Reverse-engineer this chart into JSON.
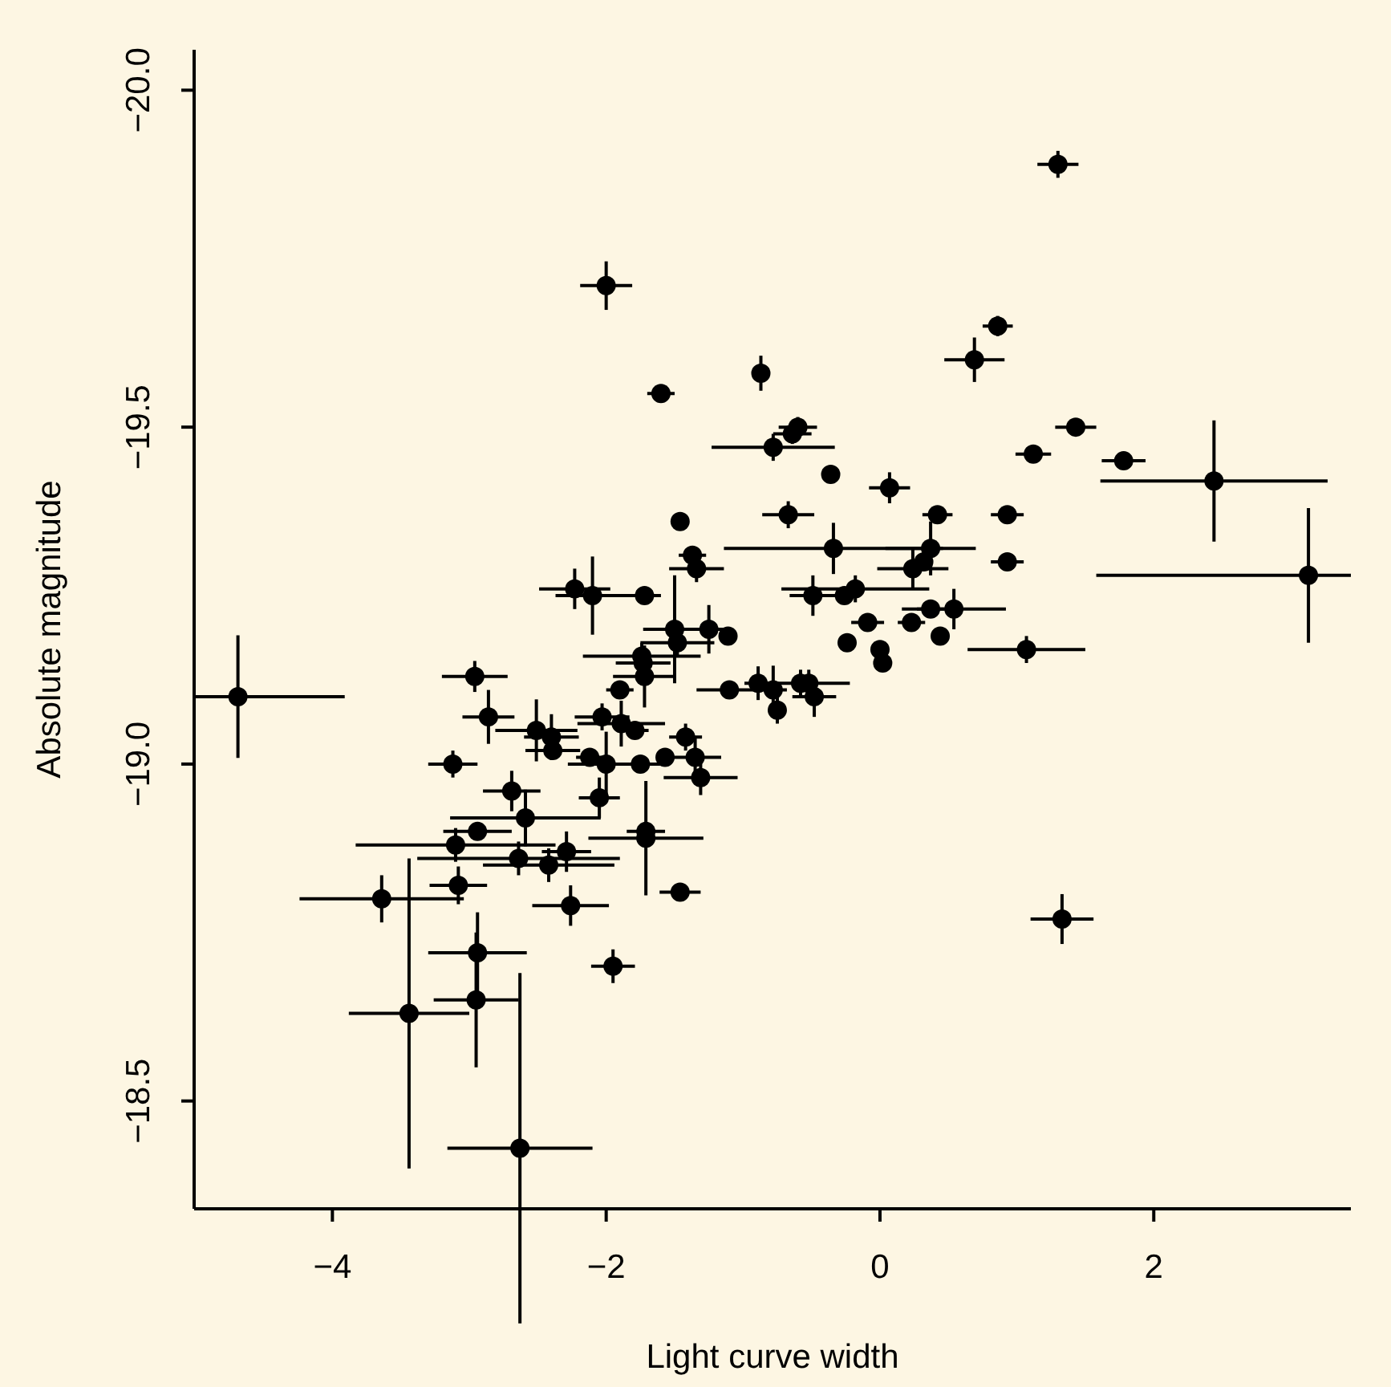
{
  "chart_data": {
    "type": "scatter",
    "xlabel": "Light curve width",
    "ylabel": "Absolute magnitude",
    "color": "#000000",
    "marker": "circle",
    "xlim": [
      -5.01,
      3.44
    ],
    "ylim": [
      -18.34,
      -20.06
    ],
    "xticks": [
      {
        "value": -4,
        "label": "−4"
      },
      {
        "value": -2,
        "label": "−2"
      },
      {
        "value": 0,
        "label": "0"
      },
      {
        "value": 2,
        "label": "2"
      }
    ],
    "yticks": [
      {
        "value": -20,
        "label": "−20.0"
      },
      {
        "value": -19.5,
        "label": "−19.5"
      },
      {
        "value": -19,
        "label": "−19.0"
      },
      {
        "value": -18.5,
        "label": "−18.5"
      }
    ],
    "x": [
      1.3,
      0.86,
      0.69,
      -0.87,
      -0.6,
      -0.64,
      -0.78,
      -0.36,
      0.07,
      1.12,
      1.43,
      1.78,
      2.44,
      -0.67,
      0.42,
      0.93,
      3.13,
      -1.46,
      -1.37,
      -1.34,
      -0.34,
      0.37,
      0.24,
      0.32,
      0.93,
      -2.23,
      -2.1,
      -1.72,
      -0.49,
      -0.18,
      -0.26,
      -0.09,
      0.23,
      0.37,
      0.54,
      0.44,
      -0.24,
      0.0,
      0.02,
      1.07,
      1.33,
      -1.5,
      -1.25,
      -1.11,
      -1.48,
      -1.74,
      -1.73,
      -1.72,
      -1.9,
      -1.1,
      -0.89,
      -0.78,
      -0.58,
      -0.52,
      -0.75,
      -0.48,
      -2.86,
      -2.03,
      -1.89,
      -1.79,
      -2.51,
      -2.4,
      -2.39,
      -1.42,
      -1.35,
      -1.31,
      -2.12,
      -2.0,
      -1.75,
      -1.57,
      -2.69,
      -2.59,
      -2.05,
      -1.71,
      -1.71,
      -2.29,
      -2.64,
      -2.42,
      -2.26,
      -1.46,
      -1.95,
      -4.69,
      -3.12,
      -2.94,
      -3.1,
      -3.08,
      -3.64,
      -2.94,
      -2.95,
      -3.44,
      -2.63,
      -2.96,
      -2.0,
      -1.6
    ],
    "values": [
      -19.89,
      -19.65,
      -19.6,
      -19.58,
      -19.5,
      -19.49,
      -19.47,
      -19.43,
      -19.41,
      -19.46,
      -19.5,
      -19.45,
      -19.42,
      -19.37,
      -19.37,
      -19.37,
      -19.28,
      -19.36,
      -19.31,
      -19.29,
      -19.32,
      -19.32,
      -19.29,
      -19.3,
      -19.3,
      -19.26,
      -19.25,
      -19.25,
      -19.25,
      -19.26,
      -19.25,
      -19.21,
      -19.21,
      -19.23,
      -19.23,
      -19.19,
      -19.18,
      -19.17,
      -19.15,
      -19.17,
      -18.77,
      -19.2,
      -19.2,
      -19.19,
      -19.18,
      -19.16,
      -19.15,
      -19.13,
      -19.11,
      -19.11,
      -19.12,
      -19.11,
      -19.12,
      -19.12,
      -19.08,
      -19.1,
      -19.07,
      -19.07,
      -19.06,
      -19.05,
      -19.05,
      -19.04,
      -19.02,
      -19.04,
      -19.01,
      -18.98,
      -19.01,
      -19.0,
      -19.0,
      -19.01,
      -18.96,
      -18.92,
      -18.95,
      -18.9,
      -18.89,
      -18.87,
      -18.86,
      -18.85,
      -18.79,
      -18.81,
      -18.7,
      -19.1,
      -19.0,
      -18.9,
      -18.88,
      -18.82,
      -18.8,
      -18.72,
      -18.65,
      -18.63,
      -18.43,
      -19.13,
      -19.71,
      -19.55
    ],
    "xerrors": [
      0.15,
      0.11,
      0.22,
      0.06,
      0.14,
      0.14,
      0.45,
      null,
      0.15,
      0.13,
      0.15,
      0.16,
      0.83,
      0.19,
      0.11,
      0.12,
      [
        1.58,
        3.44
      ],
      0.06,
      0.1,
      0.2,
      0.8,
      0.33,
      0.26,
      0.05,
      0.12,
      0.26,
      0.27,
      0.12,
      0.17,
      0.54,
      0.05,
      0.12,
      0.1,
      0.1,
      0.38,
      0.05,
      0.05,
      null,
      0.05,
      0.43,
      0.23,
      0.23,
      0.15,
      0.06,
      0.27,
      0.43,
      0.2,
      0.23,
      0.1,
      0.24,
      0.1,
      0.1,
      0.36,
      null,
      0.05,
      0.16,
      0.19,
      0.2,
      0.32,
      0.1,
      0.3,
      0.2,
      0.2,
      0.12,
      0.19,
      0.27,
      0.1,
      0.28,
      0.17,
      0.05,
      0.21,
      0.55,
      0.15,
      0.14,
      0.42,
      0.18,
      0.74,
      0.48,
      0.28,
      0.15,
      0.16,
      [
        -5.01,
        -3.91
      ],
      0.18,
      0.25,
      0.73,
      0.21,
      0.6,
      0.36,
      0.31,
      0.44,
      0.53,
      0.24,
      0.19,
      0.1
    ],
    "errors": [
      0.02,
      0.015,
      0.033,
      0.026,
      0.015,
      0.015,
      0.02,
      null,
      0.023,
      0.01,
      0.01,
      0.01,
      0.09,
      0.02,
      0.01,
      0.01,
      0.1,
      0.01,
      0.01,
      0.02,
      0.038,
      0.04,
      0.03,
      0.01,
      0.01,
      0.03,
      0.058,
      0.01,
      0.03,
      0.02,
      0.01,
      0.01,
      0.01,
      0.01,
      0.03,
      0.01,
      0.01,
      null,
      0.01,
      0.02,
      0.037,
      0.08,
      0.036,
      0.01,
      0.02,
      0.02,
      0.02,
      0.046,
      0.01,
      0.01,
      0.025,
      0.036,
      0.02,
      0.02,
      0.02,
      0.03,
      0.04,
      0.02,
      0.034,
      0.01,
      0.046,
      0.034,
      0.01,
      0.02,
      0.03,
      0.026,
      0.01,
      0.048,
      0.01,
      0.01,
      0.03,
      0.042,
      0.03,
      0.01,
      0.085,
      0.03,
      0.025,
      0.025,
      0.03,
      0.01,
      0.025,
      0.091,
      0.02,
      0.01,
      0.025,
      0.028,
      0.035,
      0.06,
      0.1,
      0.23,
      0.26,
      0.023,
      0.036,
      0.01
    ]
  }
}
